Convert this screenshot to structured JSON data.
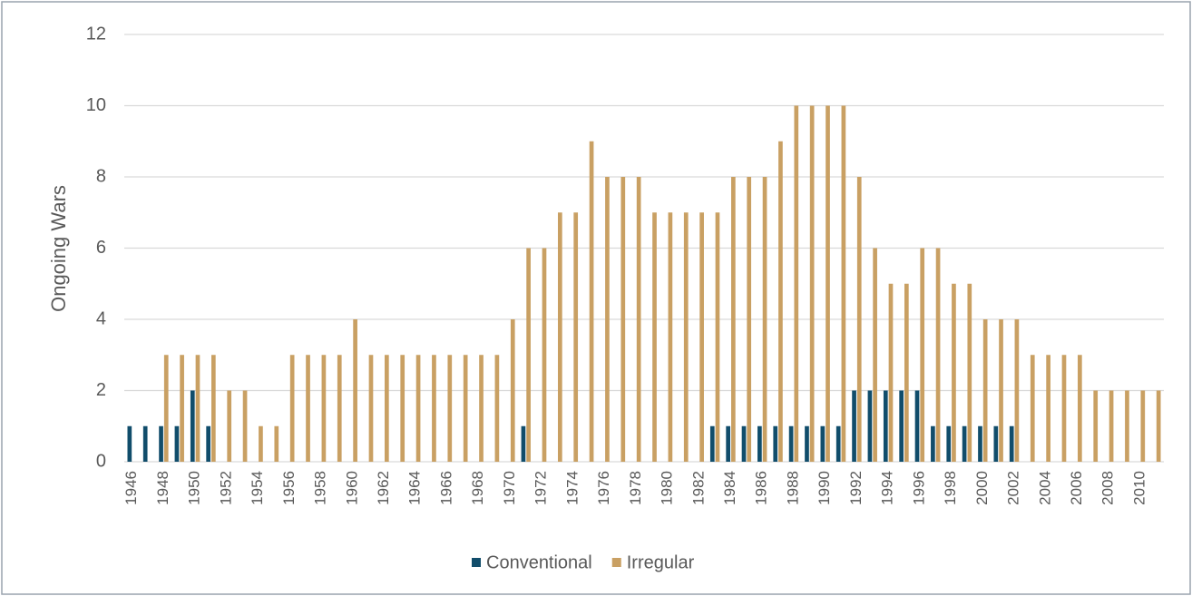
{
  "chart_data": {
    "type": "bar",
    "ylabel": "Ongoing Wars",
    "categories": [
      "1946",
      null,
      "1948",
      null,
      "1950",
      null,
      "1952",
      null,
      "1954",
      null,
      "1956",
      null,
      "1958",
      null,
      "1960",
      null,
      "1962",
      null,
      "1964",
      null,
      "1966",
      null,
      "1968",
      null,
      "1970",
      null,
      "1972",
      null,
      "1974",
      null,
      "1976",
      null,
      "1978",
      null,
      "1980",
      null,
      "1982",
      null,
      "1984",
      null,
      "1986",
      null,
      "1988",
      null,
      "1990",
      null,
      "1992",
      null,
      "1994",
      null,
      "1996",
      null,
      "1998",
      null,
      "2000",
      null,
      "2002",
      null,
      "2004",
      null,
      "2006",
      null,
      "2008",
      null,
      "2010",
      null
    ],
    "series": [
      {
        "name": "Conventional",
        "color": "#114d6b",
        "values": [
          1,
          1,
          1,
          1,
          2,
          1,
          0,
          0,
          0,
          0,
          0,
          0,
          0,
          0,
          0,
          0,
          0,
          0,
          0,
          0,
          0,
          0,
          0,
          0,
          0,
          1,
          0,
          0,
          0,
          0,
          0,
          0,
          0,
          0,
          0,
          0,
          0,
          1,
          1,
          1,
          1,
          1,
          1,
          1,
          1,
          1,
          2,
          2,
          2,
          2,
          2,
          1,
          1,
          1,
          1,
          1,
          1,
          0,
          0,
          0,
          0,
          0,
          0,
          0,
          0,
          0
        ]
      },
      {
        "name": "Irregular",
        "color": "#c9a063",
        "values": [
          0,
          0,
          3,
          3,
          3,
          3,
          2,
          2,
          1,
          1,
          3,
          3,
          3,
          3,
          4,
          3,
          3,
          3,
          3,
          3,
          3,
          3,
          3,
          3,
          4,
          6,
          6,
          7,
          7,
          9,
          8,
          8,
          8,
          7,
          7,
          7,
          7,
          7,
          8,
          8,
          8,
          9,
          10,
          10,
          10,
          10,
          8,
          6,
          5,
          5,
          6,
          6,
          5,
          5,
          4,
          4,
          4,
          3,
          3,
          3,
          3,
          2,
          2,
          2,
          2,
          2
        ]
      }
    ],
    "ylim": [
      0,
      12
    ],
    "yticks": [
      0,
      2,
      4,
      6,
      8,
      10,
      12
    ],
    "grid": true,
    "legend": "bottom"
  }
}
